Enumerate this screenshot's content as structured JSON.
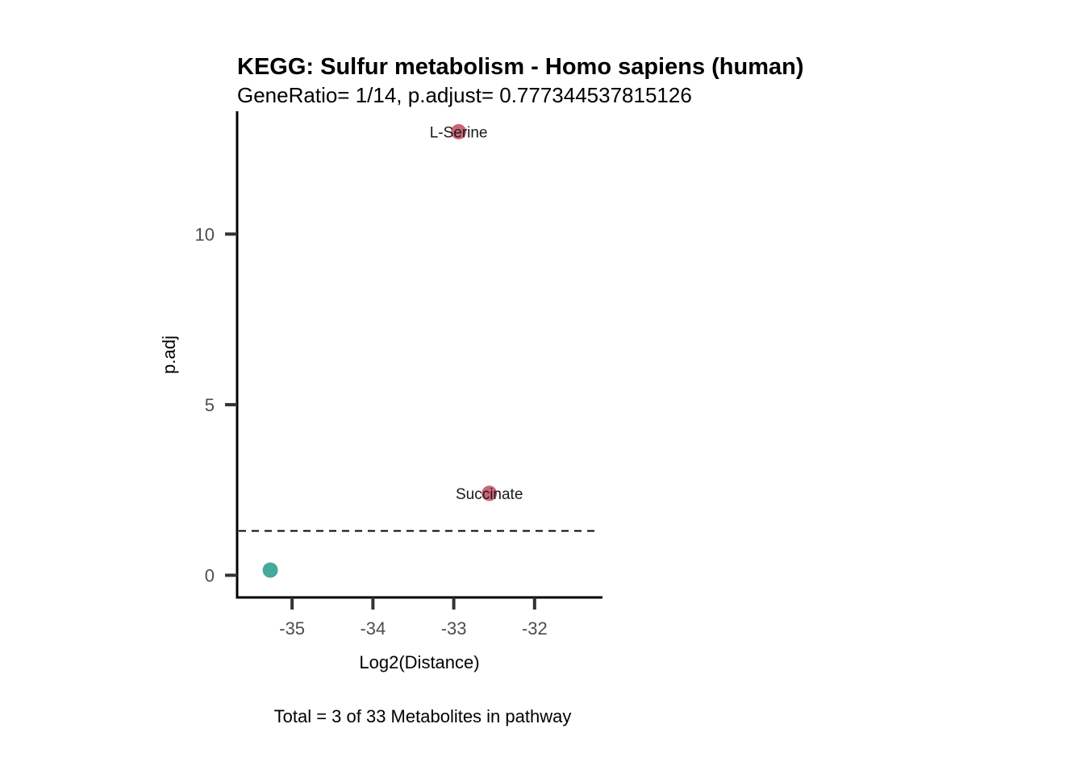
{
  "chart_data": {
    "type": "scatter",
    "title": "KEGG: Sulfur metabolism - Homo sapiens (human)",
    "subtitle": "GeneRatio= 1/14, p.adjust= 0.777344537815126",
    "xlabel": "Log2(Distance)",
    "ylabel": "p.adj",
    "caption": "Total = 3 of 33 Metabolites in pathway",
    "xlim": [
      -35.68,
      -31.16
    ],
    "ylim": [
      -0.65,
      13.6
    ],
    "x_ticks": [
      -35,
      -34,
      -33,
      -32
    ],
    "y_ticks": [
      0,
      5,
      10
    ],
    "x_tick_labels": [
      "-35",
      "-34",
      "-33",
      "-32"
    ],
    "y_tick_labels": [
      "0",
      "5",
      "10"
    ],
    "threshold_line": {
      "y": 1.3,
      "style": "dashed"
    },
    "colors": {
      "significant": "#cc6677",
      "not_significant": "#44aa99",
      "axis": "#000000",
      "tick": "#333333"
    },
    "points": [
      {
        "x": -32.94,
        "y": 13.0,
        "label": "L-Serine",
        "color": "#cc6677"
      },
      {
        "x": -32.56,
        "y": 2.4,
        "label": "Succinate",
        "color": "#cc6677"
      },
      {
        "x": -35.27,
        "y": 0.15,
        "label": "",
        "color": "#44aa99"
      }
    ],
    "grid": false,
    "legend": "none"
  }
}
